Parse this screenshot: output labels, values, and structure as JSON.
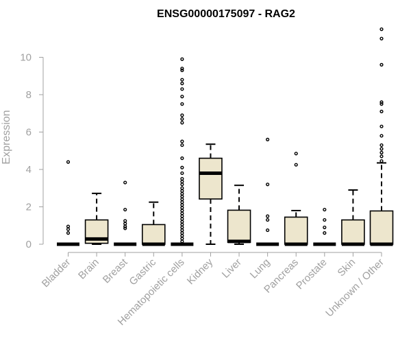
{
  "chart_data": {
    "type": "boxplot",
    "title": "ENSG00000175097 - RAG2",
    "xlabel": "",
    "ylabel": "Expression",
    "ylim": [
      0,
      11.6
    ],
    "yticks": [
      0,
      2,
      4,
      6,
      8,
      10
    ],
    "box_fill": "#ede6cd",
    "categories": [
      "Bladder",
      "Brain",
      "Breast",
      "Gastric",
      "Hematopoietic cells",
      "Kidney",
      "Liver",
      "Lung",
      "Pancreas",
      "Prostate",
      "Skin",
      "Unknown / Other"
    ],
    "boxes": [
      {
        "q1": 0,
        "median": 0,
        "q3": 0,
        "whisker_low": 0,
        "whisker_high": 0,
        "outliers": [
          0.6,
          0.8,
          0.95,
          4.4
        ]
      },
      {
        "q1": 0.05,
        "median": 0.28,
        "q3": 1.3,
        "whisker_low": 0,
        "whisker_high": 2.72,
        "outliers": []
      },
      {
        "q1": 0,
        "median": 0,
        "q3": 0,
        "whisker_low": 0,
        "whisker_high": 0,
        "outliers": [
          0.85,
          0.95,
          1.1,
          1.25,
          1.85,
          3.3
        ]
      },
      {
        "q1": 0,
        "median": 0,
        "q3": 1.05,
        "whisker_low": 0,
        "whisker_high": 2.25,
        "outliers": []
      },
      {
        "q1": 0,
        "median": 0,
        "q3": 0,
        "whisker_low": 0,
        "whisker_high": 0,
        "outliers": [
          0.15,
          0.3,
          0.45,
          0.6,
          0.75,
          0.9,
          1.05,
          1.2,
          1.35,
          1.5,
          1.65,
          1.8,
          1.95,
          2.1,
          2.25,
          2.4,
          2.55,
          2.7,
          2.85,
          3.0,
          3.2,
          3.35,
          3.5,
          3.8,
          4.1,
          4.6,
          5.3,
          5.5,
          6.5,
          6.7,
          6.9,
          7.5,
          7.9,
          8.3,
          8.6,
          8.8,
          9.3,
          9.4,
          9.9
        ]
      },
      {
        "q1": 2.42,
        "median": 3.8,
        "q3": 4.6,
        "whisker_low": 0,
        "whisker_high": 5.35,
        "outliers": []
      },
      {
        "q1": 0.1,
        "median": 0.15,
        "q3": 1.82,
        "whisker_low": 0,
        "whisker_high": 3.15,
        "outliers": []
      },
      {
        "q1": 0,
        "median": 0,
        "q3": 0,
        "whisker_low": 0,
        "whisker_high": 0,
        "outliers": [
          0.75,
          1.3,
          1.5,
          3.2,
          5.6
        ]
      },
      {
        "q1": 0,
        "median": 0,
        "q3": 1.45,
        "whisker_low": 0,
        "whisker_high": 1.8,
        "outliers": [
          4.25,
          4.85
        ]
      },
      {
        "q1": 0,
        "median": 0,
        "q3": 0,
        "whisker_low": 0,
        "whisker_high": 0,
        "outliers": [
          0.6,
          0.9,
          1.3,
          1.85
        ]
      },
      {
        "q1": 0,
        "median": 0,
        "q3": 1.3,
        "whisker_low": 0,
        "whisker_high": 2.9,
        "outliers": []
      },
      {
        "q1": 0,
        "median": 0,
        "q3": 1.78,
        "whisker_low": 0,
        "whisker_high": 4.35,
        "outliers": [
          4.45,
          4.7,
          4.9,
          5.1,
          5.3,
          5.8,
          6.3,
          7.1,
          7.5,
          7.6,
          9.6,
          11.0,
          11.5
        ]
      }
    ]
  }
}
